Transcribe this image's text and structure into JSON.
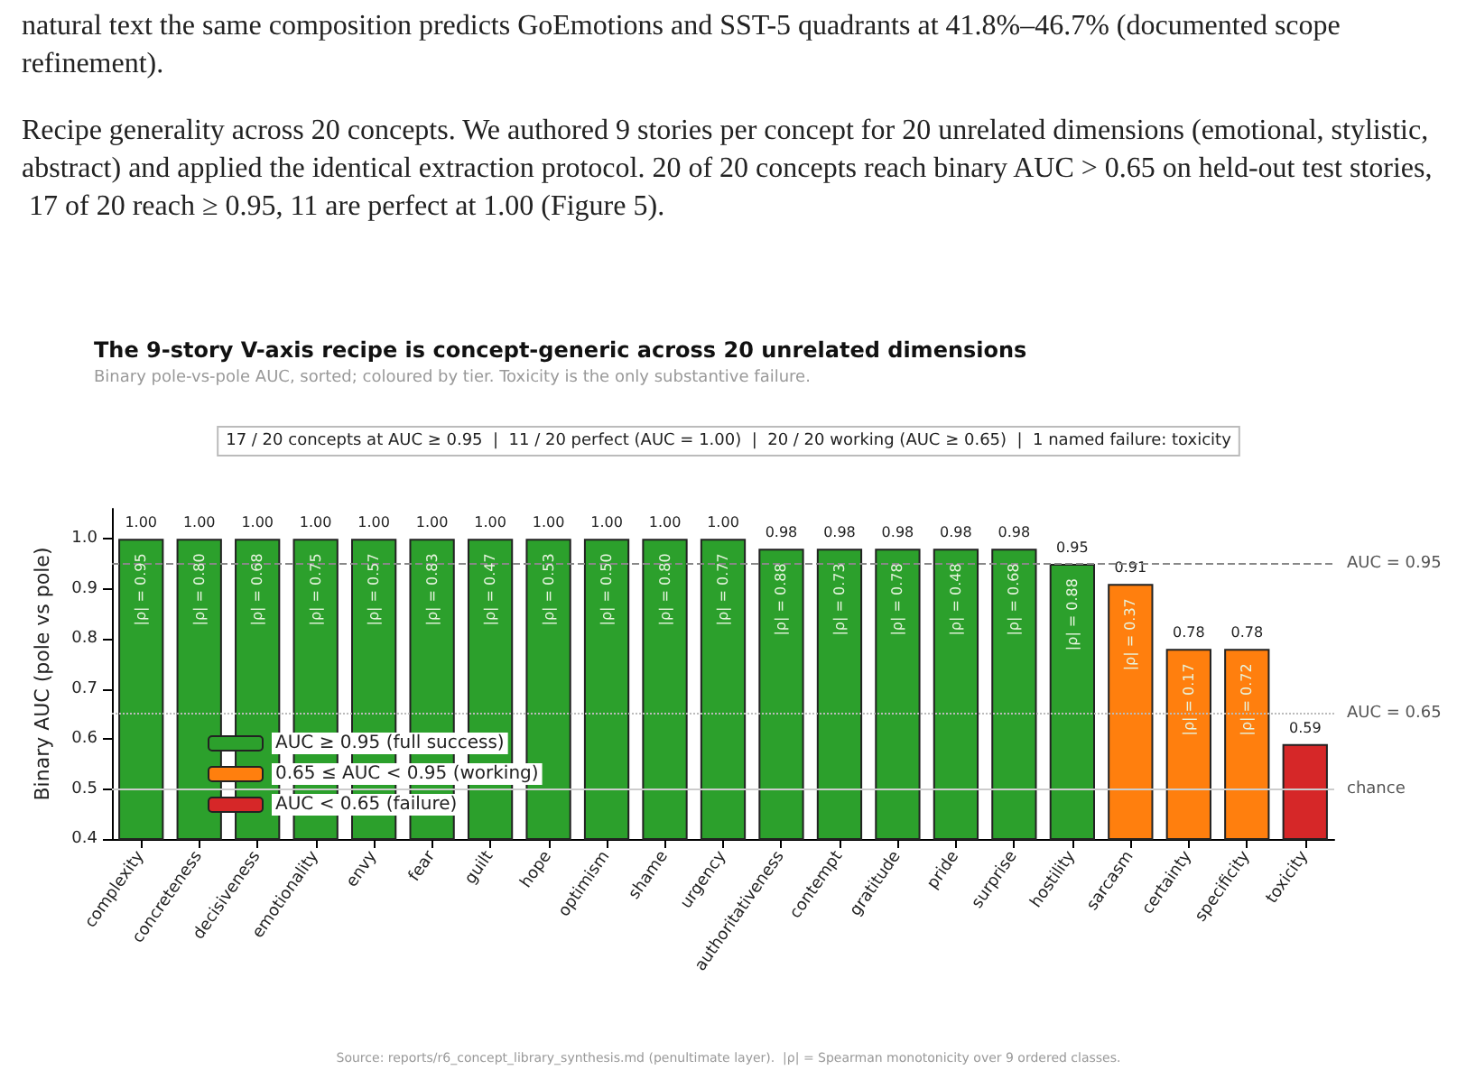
{
  "chart_data": {
    "type": "bar",
    "title": "The 9-story V-axis recipe is concept-generic across 20 unrelated dimensions",
    "subtitle": "Binary pole-vs-pole AUC, sorted; coloured by tier. Toxicity is the only substantive failure.",
    "ylabel": "Binary AUC (pole vs pole)",
    "categories": [
      "complexity",
      "concreteness",
      "decisiveness",
      "emotionality",
      "envy",
      "fear",
      "guilt",
      "hope",
      "optimism",
      "shame",
      "urgency",
      "authoritativeness",
      "contempt",
      "gratitude",
      "pride",
      "surprise",
      "hostility",
      "sarcasm",
      "certainty",
      "specificity",
      "toxicity"
    ],
    "stacked": true,
    "series": [
      {
        "name": "AUC ≥ 0.95 (full success)",
        "color": "#2ca02c",
        "values": [
          1.0,
          1.0,
          1.0,
          1.0,
          1.0,
          1.0,
          1.0,
          1.0,
          1.0,
          1.0,
          1.0,
          0.98,
          0.98,
          0.98,
          0.98,
          0.98,
          0.95,
          null,
          null,
          null,
          null
        ],
        "value_labels": [
          "1.00",
          "1.00",
          "1.00",
          "1.00",
          "1.00",
          "1.00",
          "1.00",
          "1.00",
          "1.00",
          "1.00",
          "1.00",
          "0.98",
          "0.98",
          "0.98",
          "0.98",
          "0.98",
          "0.95",
          null,
          null,
          null,
          null
        ]
      },
      {
        "name": "0.65 ≤ AUC < 0.95 (working)",
        "color": "#ff7f0e",
        "values": [
          null,
          null,
          null,
          null,
          null,
          null,
          null,
          null,
          null,
          null,
          null,
          null,
          null,
          null,
          null,
          null,
          null,
          0.91,
          0.78,
          0.78,
          null
        ],
        "value_labels": [
          null,
          null,
          null,
          null,
          null,
          null,
          null,
          null,
          null,
          null,
          null,
          null,
          null,
          null,
          null,
          null,
          null,
          "0.91",
          "0.78",
          "0.78",
          null
        ]
      },
      {
        "name": "AUC < 0.65 (failure)",
        "color": "#d62728",
        "values": [
          null,
          null,
          null,
          null,
          null,
          null,
          null,
          null,
          null,
          null,
          null,
          null,
          null,
          null,
          null,
          null,
          null,
          null,
          null,
          null,
          0.59
        ],
        "value_labels": [
          null,
          null,
          null,
          null,
          null,
          null,
          null,
          null,
          null,
          null,
          null,
          null,
          null,
          null,
          null,
          null,
          null,
          null,
          null,
          null,
          "0.59"
        ]
      }
    ],
    "ylim": [
      0.4,
      1.06
    ],
    "yticks": [
      0.4,
      0.5,
      0.6,
      0.7,
      0.8,
      0.9,
      {
        "value": 1.0,
        "label": "1.0"
      }
    ],
    "legend": "bottom left",
    "ref_lines": [
      {
        "axis": "y",
        "value": 0.95,
        "label": "AUC = 0.95",
        "color": "#888888",
        "line_style": "dashed"
      },
      {
        "axis": "y",
        "value": 0.65,
        "label": "AUC = 0.65",
        "color": "#bbbbbb",
        "line_style": "dotted"
      },
      {
        "axis": "y",
        "value": 0.5,
        "label": "chance",
        "color": "#cccccc",
        "line_style": "solid"
      }
    ],
    "annotations": [
      "natural text the same composition predicts GoEmotions and SST-5 quadrants at 41.8%–46.7% (documented scope refinement).",
      "Recipe generality across 20 concepts. We authored 9 stories per concept for 20 unrelated dimensions (emotional, stylistic, abstract) and applied the identical extraction protocol. 20 of 20 concepts reach binary AUC > 0.65 on held-out test stories, 17 of 20 reach ≥ 0.95, 11 are perfect at 1.00 (Figure 5).",
      "17 / 20 concepts at AUC ≥ 0.95  |  11 / 20 perfect (AUC = 1.00)  |  20 / 20 working (AUC ≥ 0.65)  |  1 named failure: toxicity",
      "Source: reports/r6_concept_library_synthesis.md (penultimate layer).  |ρ| = Spearman monotonicity over 9 ordered classes.",
      {
        "text": "|ρ| = 0.95",
        "x": "complexity",
        "y": 1.0
      },
      {
        "text": "|ρ| = 0.80",
        "x": "concreteness",
        "y": 1.0
      },
      {
        "text": "|ρ| = 0.68",
        "x": "decisiveness",
        "y": 1.0
      },
      {
        "text": "|ρ| = 0.75",
        "x": "emotionality",
        "y": 1.0
      },
      {
        "text": "|ρ| = 0.57",
        "x": "envy",
        "y": 1.0
      },
      {
        "text": "|ρ| = 0.83",
        "x": "fear",
        "y": 1.0
      },
      {
        "text": "|ρ| = 0.47",
        "x": "guilt",
        "y": 1.0
      },
      {
        "text": "|ρ| = 0.53",
        "x": "hope",
        "y": 1.0
      },
      {
        "text": "|ρ| = 0.50",
        "x": "optimism",
        "y": 1.0
      },
      {
        "text": "|ρ| = 0.80",
        "x": "shame",
        "y": 1.0
      },
      {
        "text": "|ρ| = 0.77",
        "x": "urgency",
        "y": 1.0
      },
      {
        "text": "|ρ| = 0.88",
        "x": "authoritativeness",
        "y": 0.98
      },
      {
        "text": "|ρ| = 0.73",
        "x": "contempt",
        "y": 0.98
      },
      {
        "text": "|ρ| = 0.78",
        "x": "gratitude",
        "y": 0.98
      },
      {
        "text": "|ρ| = 0.48",
        "x": "pride",
        "y": 0.98
      },
      {
        "text": "|ρ| = 0.68",
        "x": "surprise",
        "y": 0.98
      },
      {
        "text": "|ρ| = 0.88",
        "x": "hostility",
        "y": 0.95
      },
      {
        "text": "|ρ| = 0.37",
        "x": "sarcasm",
        "y": 0.91
      },
      {
        "text": "|ρ| = 0.17",
        "x": "certainty",
        "y": 0.78
      },
      {
        "text": "|ρ| = 0.72",
        "x": "specificity",
        "y": 0.78
      }
    ]
  }
}
